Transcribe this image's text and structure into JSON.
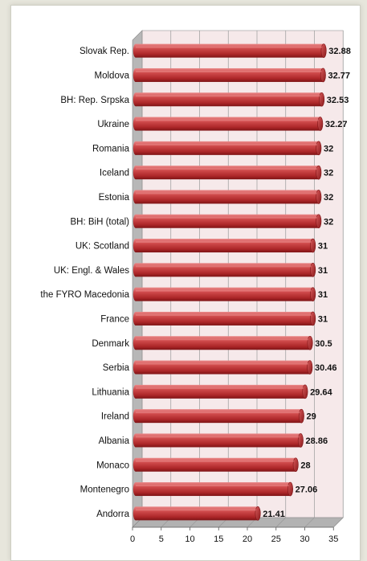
{
  "chart_data": {
    "type": "bar",
    "orientation": "horizontal",
    "style": "3d-cylinder",
    "categories": [
      "Slovak Rep.",
      "Moldova",
      "BH: Rep. Srpska",
      "Ukraine",
      "Romania",
      "Iceland",
      "Estonia",
      "BH: BiH (total)",
      "UK: Scotland",
      "UK: Engl. & Wales",
      "the FYRO Macedonia",
      "France",
      "Denmark",
      "Serbia",
      "Lithuania",
      "Ireland",
      "Albania",
      "Monaco",
      "Montenegro",
      "Andorra"
    ],
    "values": [
      32.88,
      32.77,
      32.53,
      32.27,
      32,
      32,
      32,
      32,
      31,
      31,
      31,
      31,
      30.5,
      30.46,
      29.64,
      29,
      28.86,
      28,
      27.06,
      21.41
    ],
    "value_labels": [
      "32.88",
      "32.77",
      "32.53",
      "32.27",
      "32",
      "32",
      "32",
      "32",
      "31",
      "31",
      "31",
      "31",
      "30.5",
      "30.46",
      "29.64",
      "29",
      "28.86",
      "28",
      "27.06",
      "21.41"
    ],
    "x_ticks": [
      "0",
      "5",
      "10",
      "15",
      "20",
      "25",
      "30",
      "35"
    ],
    "xlim": [
      0,
      35
    ],
    "grid": true,
    "colors": {
      "bar": "#c0393a",
      "bar_dark": "#7e1416",
      "bar_light": "#e98686",
      "back_wall": "#f6e9ea",
      "side_wall": "#b7b7b7",
      "floor": "#b2b2b2"
    }
  }
}
